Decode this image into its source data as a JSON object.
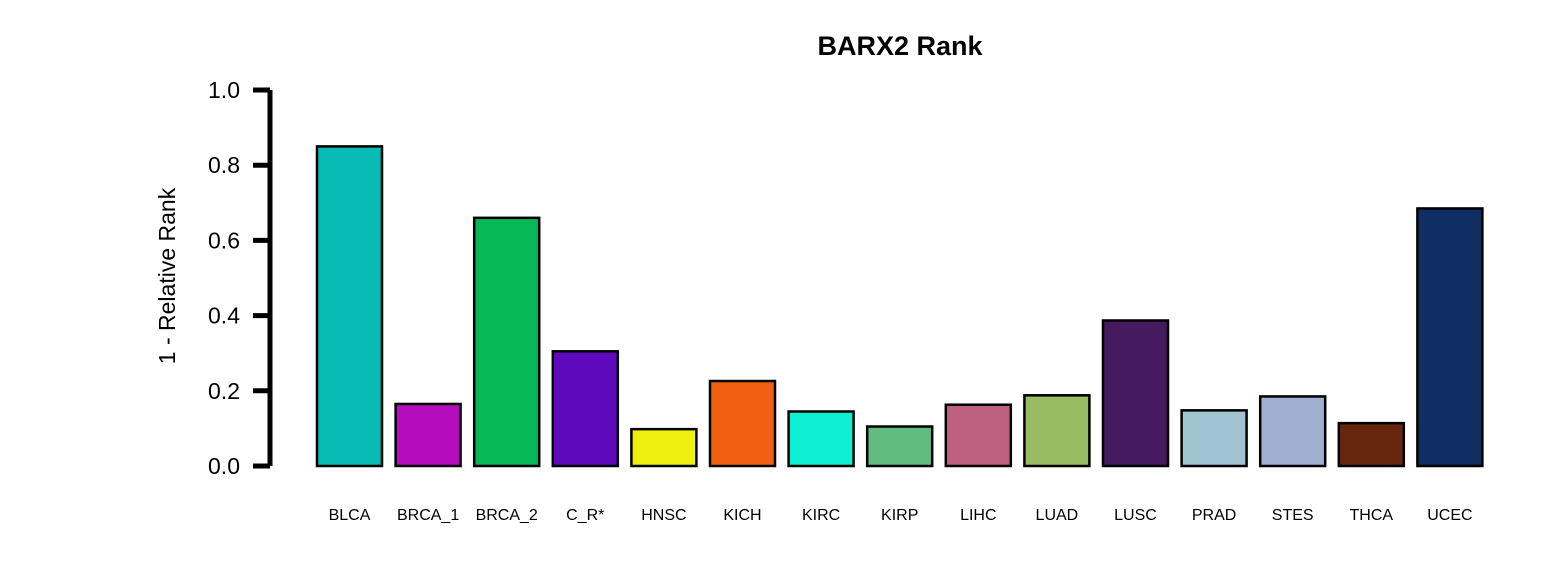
{
  "chart_data": {
    "type": "bar",
    "title": "BARX2 Rank",
    "xlabel": "",
    "ylabel": "1 - Relative Rank",
    "ylim": [
      0,
      1
    ],
    "yticks": [
      "0.0",
      "0.2",
      "0.4",
      "0.6",
      "0.8",
      "1.0"
    ],
    "grid": false,
    "categories": [
      "BLCA",
      "BRCA_1",
      "BRCA_2",
      "C_R*",
      "HNSC",
      "KICH",
      "KIRC",
      "KIRP",
      "LIHC",
      "LUAD",
      "LUSC",
      "PRAD",
      "STES",
      "THCA",
      "UCEC"
    ],
    "values": [
      0.85,
      0.165,
      0.66,
      0.305,
      0.098,
      0.226,
      0.145,
      0.105,
      0.163,
      0.188,
      0.387,
      0.148,
      0.185,
      0.114,
      0.685
    ],
    "colors": [
      "#08BBB4",
      "#B50CBE",
      "#06B856",
      "#5E0ABC",
      "#F0F00E",
      "#F06010",
      "#0EEED2",
      "#62BC80",
      "#BE6080",
      "#98BC62",
      "#461A5E",
      "#A0C4D2",
      "#A0AED2",
      "#662610",
      "#0E2E64"
    ]
  }
}
